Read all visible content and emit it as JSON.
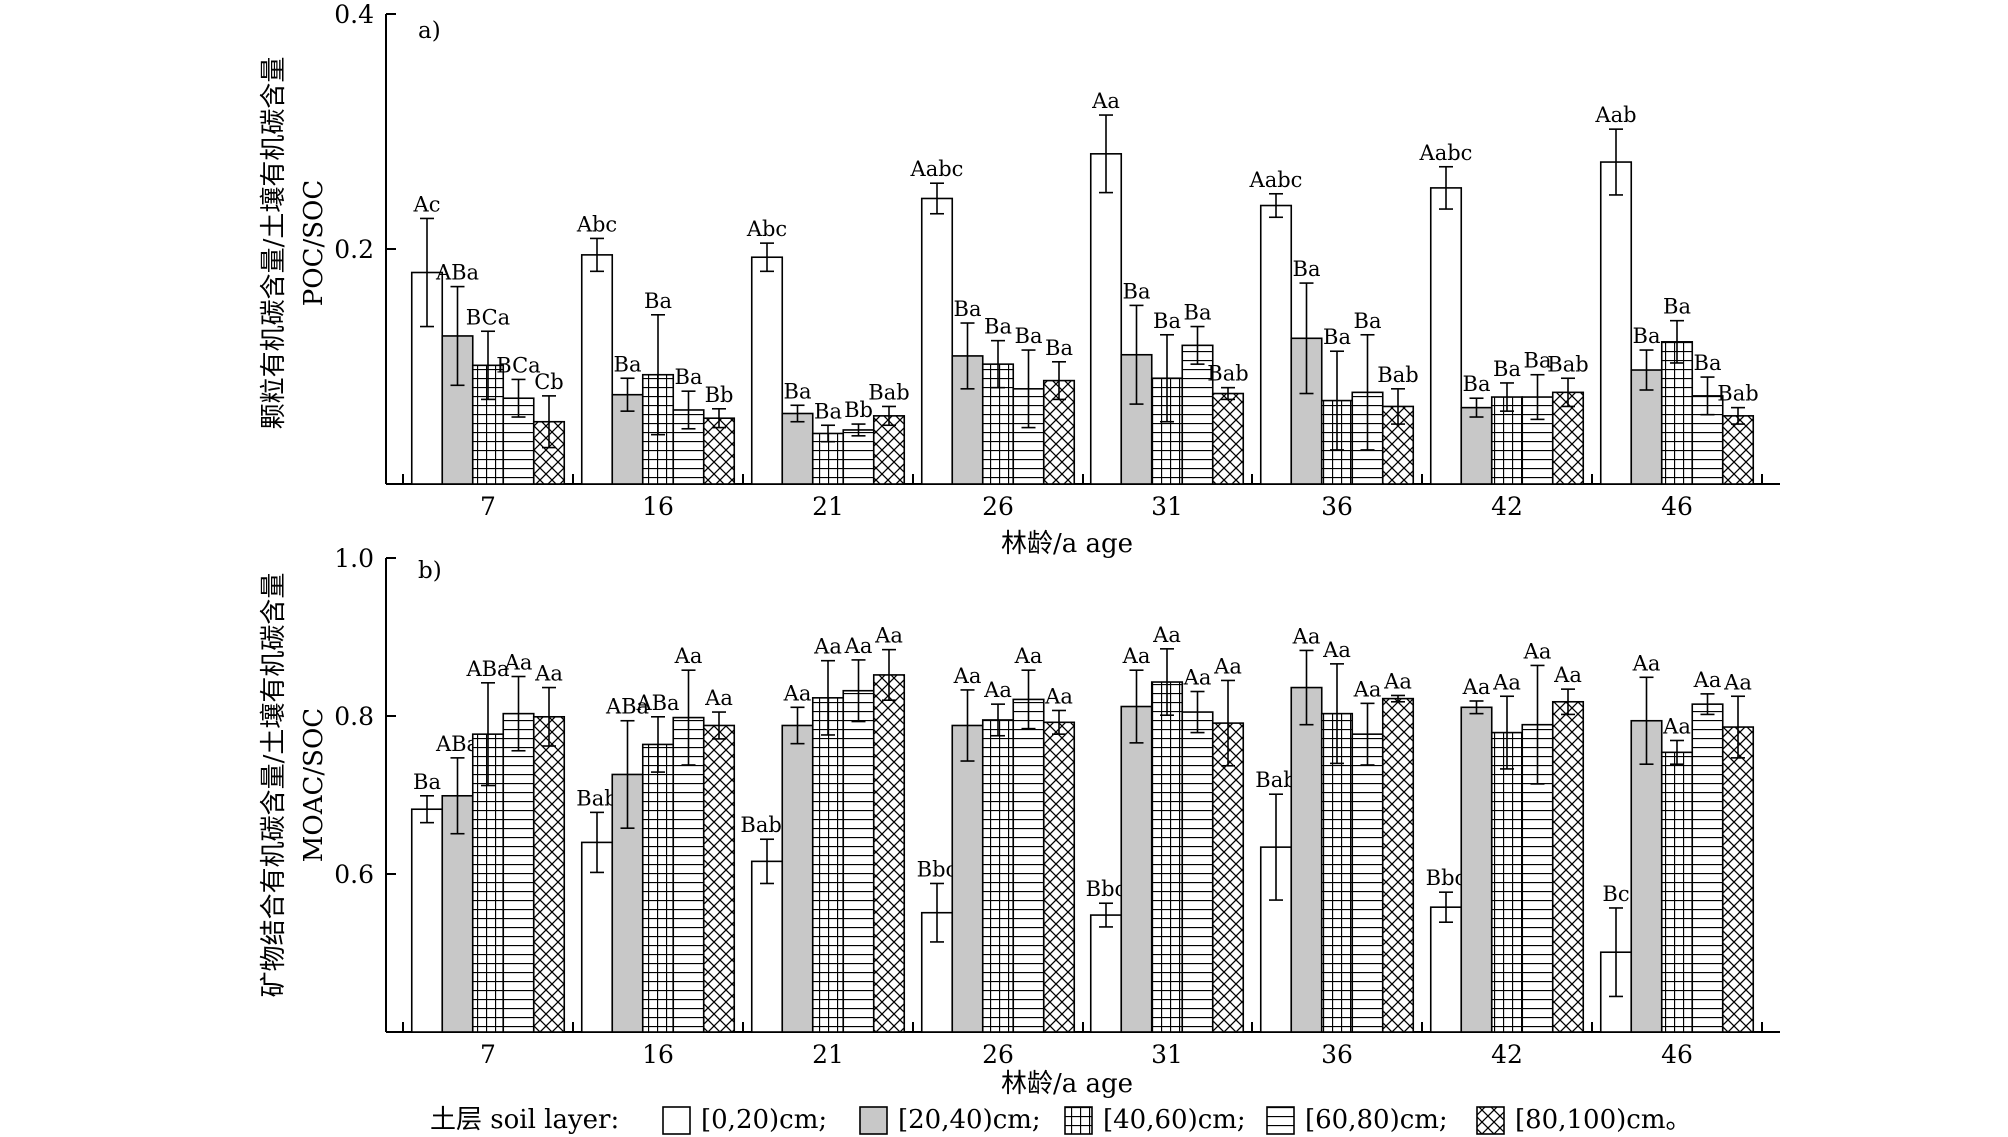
{
  "chart_data": [
    {
      "type": "bar",
      "panel_label": "a)",
      "xlabel": "林龄/a age",
      "ylabel_cn": "颗粒有机碳含量/土壤有机碳含量",
      "ylabel_en": "POC/SOC",
      "ylim": [
        0,
        0.4
      ],
      "yticks": [
        0.2,
        0.4
      ],
      "ytick_labels": [
        "0.2",
        "0.4"
      ],
      "categories": [
        "7",
        "16",
        "21",
        "26",
        "31",
        "36",
        "42",
        "46"
      ],
      "series": [
        {
          "name": "[0,20)cm",
          "values": [
            0.18,
            0.195,
            0.193,
            0.243,
            0.281,
            0.237,
            0.252,
            0.274
          ],
          "errors": [
            0.046,
            0.014,
            0.012,
            0.013,
            0.033,
            0.01,
            0.018,
            0.028
          ],
          "sig": [
            "Ac",
            "Abc",
            "Abc",
            "Aabc",
            "Aa",
            "Aabc",
            "Aabc",
            "Aab"
          ]
        },
        {
          "name": "[20,40)cm",
          "values": [
            0.126,
            0.076,
            0.06,
            0.109,
            0.11,
            0.124,
            0.065,
            0.097
          ],
          "errors": [
            0.042,
            0.014,
            0.007,
            0.028,
            0.042,
            0.047,
            0.008,
            0.017
          ],
          "sig": [
            "ABa",
            "Ba",
            "Ba",
            "Ba",
            "Ba",
            "Ba",
            "Ba",
            "Ba"
          ]
        },
        {
          "name": "[40,60)cm",
          "values": [
            0.101,
            0.093,
            0.043,
            0.102,
            0.09,
            0.071,
            0.074,
            0.121
          ],
          "errors": [
            0.029,
            0.051,
            0.007,
            0.02,
            0.037,
            0.042,
            0.012,
            0.018
          ],
          "sig": [
            "BCa",
            "Ba",
            "Ba",
            "Ba",
            "Ba",
            "Ba",
            "Ba",
            "Ba"
          ]
        },
        {
          "name": "[60,80)cm",
          "values": [
            0.073,
            0.063,
            0.046,
            0.081,
            0.118,
            0.078,
            0.074,
            0.075
          ],
          "errors": [
            0.016,
            0.016,
            0.005,
            0.033,
            0.016,
            0.049,
            0.019,
            0.016
          ],
          "sig": [
            "BCa",
            "Ba",
            "Bb",
            "Ba",
            "Ba",
            "Ba",
            "Ba",
            "Ba"
          ]
        },
        {
          "name": "[80,100)cm",
          "values": [
            0.053,
            0.056,
            0.058,
            0.088,
            0.077,
            0.066,
            0.078,
            0.058
          ],
          "errors": [
            0.022,
            0.008,
            0.008,
            0.016,
            0.005,
            0.015,
            0.012,
            0.007
          ],
          "sig": [
            "Cb",
            "Bb",
            "Bab",
            "Ba",
            "Bab",
            "Bab",
            "Bab",
            "Bab"
          ]
        }
      ]
    },
    {
      "type": "bar",
      "panel_label": "b)",
      "xlabel": "林龄/a age",
      "ylabel_cn": "矿物结合有机碳含量/土壤有机碳含量",
      "ylabel_en": "MOAC/SOC",
      "ylim": [
        0.4,
        1.0
      ],
      "yticks": [
        0.6,
        0.8,
        1.0
      ],
      "ytick_labels": [
        "0.6",
        "0.8",
        "1.0"
      ],
      "categories": [
        "7",
        "16",
        "21",
        "26",
        "31",
        "36",
        "42",
        "46"
      ],
      "series": [
        {
          "name": "[0,20)cm",
          "values": [
            0.682,
            0.64,
            0.616,
            0.551,
            0.548,
            0.634,
            0.558,
            0.501
          ],
          "errors": [
            0.017,
            0.038,
            0.028,
            0.037,
            0.015,
            0.067,
            0.019,
            0.056
          ],
          "sig": [
            "Ba",
            "Bab",
            "Babc",
            "Bbc",
            "Bbc",
            "Bab",
            "Bbc",
            "Bc"
          ]
        },
        {
          "name": "[20,40)cm",
          "values": [
            0.699,
            0.726,
            0.788,
            0.788,
            0.812,
            0.836,
            0.811,
            0.794
          ],
          "errors": [
            0.048,
            0.068,
            0.023,
            0.045,
            0.046,
            0.047,
            0.008,
            0.055
          ],
          "sig": [
            "ABa",
            "ABa",
            "Aa",
            "Aa",
            "Aa",
            "Aa",
            "Aa",
            "Aa"
          ]
        },
        {
          "name": "[40,60)cm",
          "values": [
            0.777,
            0.764,
            0.823,
            0.795,
            0.843,
            0.803,
            0.779,
            0.754
          ],
          "errors": [
            0.065,
            0.035,
            0.047,
            0.02,
            0.042,
            0.063,
            0.046,
            0.015
          ],
          "sig": [
            "ABa",
            "ABa",
            "Aa",
            "Aa",
            "Aa",
            "Aa",
            "Aa",
            "Aa"
          ]
        },
        {
          "name": "[60,80)cm",
          "values": [
            0.803,
            0.798,
            0.832,
            0.821,
            0.805,
            0.777,
            0.789,
            0.815
          ],
          "errors": [
            0.047,
            0.06,
            0.039,
            0.037,
            0.026,
            0.039,
            0.075,
            0.013
          ],
          "sig": [
            "Aa",
            "Aa",
            "Aa",
            "Aa",
            "Aa",
            "Aa",
            "Aa",
            "Aa"
          ]
        },
        {
          "name": "[80,100)cm",
          "values": [
            0.799,
            0.788,
            0.852,
            0.792,
            0.791,
            0.822,
            0.818,
            0.786
          ],
          "errors": [
            0.037,
            0.017,
            0.032,
            0.015,
            0.054,
            0.004,
            0.016,
            0.039
          ],
          "sig": [
            "Aa",
            "Aa",
            "Aa",
            "Aa",
            "Aa",
            "Aa",
            "Aa",
            "Aa"
          ]
        }
      ]
    }
  ],
  "legend": {
    "title": "土层 soil layer:",
    "items": [
      {
        "label": "[0,20)cm;",
        "pattern": "white"
      },
      {
        "label": "[20,40)cm;",
        "pattern": "gray"
      },
      {
        "label": "[40,60)cm;",
        "pattern": "grid"
      },
      {
        "label": "[60,80)cm;",
        "pattern": "hlines"
      },
      {
        "label": "[80,100)cm。",
        "pattern": "crosshatch"
      }
    ]
  },
  "colors": {
    "gray_fill": "#c8c8c8",
    "line": "#000000",
    "background": "#ffffff"
  }
}
